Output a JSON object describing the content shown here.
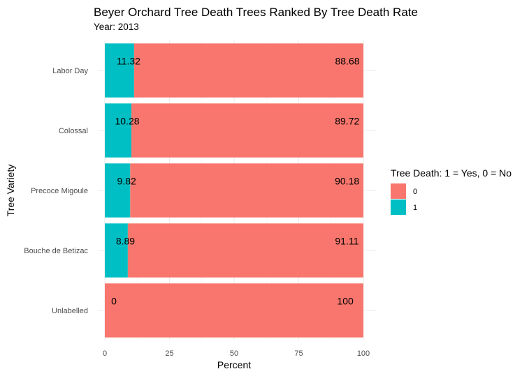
{
  "chart_data": {
    "type": "bar",
    "orientation": "horizontal",
    "stacked": true,
    "title": "Beyer Orchard Tree Death Trees Ranked By Tree Death Rate",
    "subtitle": "Year: 2013",
    "xlabel": "Percent",
    "ylabel": "Tree Variety",
    "xlim": [
      0,
      100
    ],
    "x_ticks": [
      0,
      25,
      50,
      75,
      100
    ],
    "grid": true,
    "categories": [
      "Labor Day",
      "Colossal",
      "Precoce Migoule",
      "Bouche de Betizac",
      "Unlabelled"
    ],
    "series": [
      {
        "name": "1",
        "color": "#00BFC4",
        "values": [
          11.32,
          10.28,
          9.82,
          8.89,
          0
        ]
      },
      {
        "name": "0",
        "color": "#F8766D",
        "values": [
          88.68,
          89.72,
          90.18,
          91.11,
          100
        ]
      }
    ],
    "data_labels": {
      "series_1": [
        "11.32",
        "10.28",
        "9.82",
        "8.89",
        "0"
      ],
      "series_0": [
        "88.68",
        "89.72",
        "90.18",
        "91.11",
        "100"
      ]
    },
    "legend": {
      "title": "Tree Death: 1 = Yes, 0 = No",
      "position": "right",
      "entries": [
        {
          "label": "0",
          "color": "#F8766D"
        },
        {
          "label": "1",
          "color": "#00BFC4"
        }
      ]
    }
  }
}
